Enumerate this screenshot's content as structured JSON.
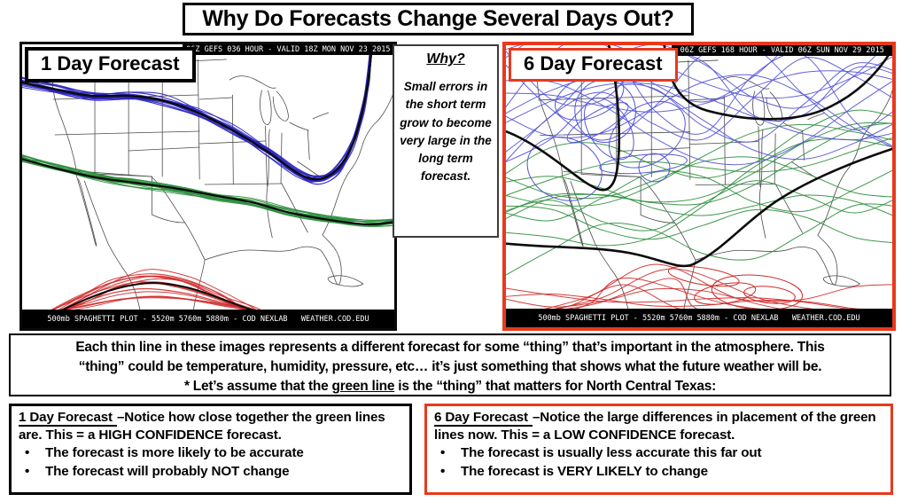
{
  "slide": {
    "title": "Why Do Forecasts Change Several Days Out?",
    "bullet_char": "•",
    "colors": {
      "accent_red": "#e8391c",
      "line_blue_1day": "#2a24c0",
      "line_blue_6day": "#5656d8",
      "line_green": "#2e8f3e",
      "line_red": "#cf2b2b",
      "mean_black": "#0a0a0a",
      "map_outline": "#4a4a4a",
      "bar_bg": "#000000",
      "bar_text": "#ffffff"
    }
  },
  "panels": [
    {
      "label": "1 Day Forecast",
      "header_bar": "06Z GEFS 036 HOUR - VALID 18Z MON NOV 23 2015",
      "footer_bar": "500mb SPAGHETTI PLOT - 5520m 5760m 5880m - COD NEXLAB   WEATHER.COD.EDU",
      "mode": "tight"
    },
    {
      "label": "6 Day Forecast",
      "header_bar": "06Z GEFS 168 HOUR - VALID 06Z SUN NOV 29 2015",
      "footer_bar": "500mb SPAGHETTI PLOT - 5520m 5760m 5880m - COD NEXLAB   WEATHER.COD.EDU",
      "mode": "spread"
    }
  ],
  "why_box": {
    "title": "Why?",
    "body": "Small errors in the short term grow to become very large in the long term forecast."
  },
  "explanation": {
    "line1": "Each thin line in these images represents a different forecast for some “thing” that’s important in the atmosphere. This",
    "line2": "“thing” could be temperature, humidity, pressure, etc… it’s just something that shows what the future weather will be.",
    "line3_pre": "* Let’s assume that the ",
    "line3_underlined": "green line",
    "line3_post": " is the “thing” that matters for North Central Texas:"
  },
  "detail_boxes": [
    {
      "title": "1 Day Forecast",
      "rest": "–Notice how close together the green lines are. This = a HIGH CONFIDENCE forecast.",
      "bullets": [
        "The forecast is more likely to be accurate",
        "The forecast will probably NOT change"
      ]
    },
    {
      "title": "6 Day Forecast",
      "rest": "–Notice the large differences in placement of the green lines now. This = a LOW CONFIDENCE forecast.",
      "bullets": [
        "The forecast is usually less accurate this far out",
        "The forecast is VERY LIKELY to change"
      ]
    }
  ]
}
